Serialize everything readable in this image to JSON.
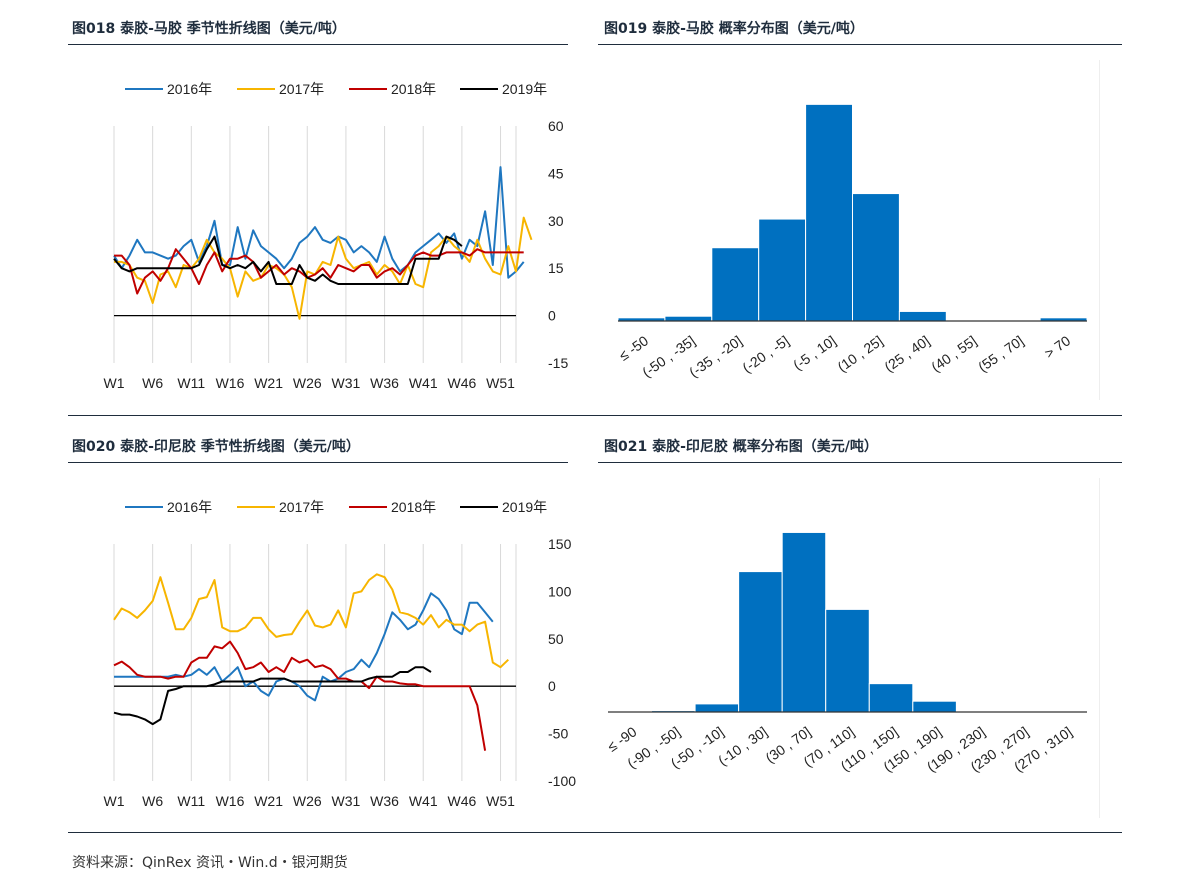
{
  "source": "资料来源：QinRex 资讯・Win.d・银河期货",
  "panels": {
    "p018": {
      "title": "图018  泰胶-马胶  季节性折线图（美元/吨）"
    },
    "p019": {
      "title": "图019  泰胶-马胶  概率分布图（美元/吨）"
    },
    "p020": {
      "title": "图020  泰胶-印尼胶  季节性折线图（美元/吨）"
    },
    "p021": {
      "title": "图021  泰胶-印尼胶  概率分布图（美元/吨）"
    }
  },
  "chart_data": [
    {
      "id": "c018",
      "type": "line",
      "title": "泰胶-马胶 季节性折线图（美元/吨）",
      "legend_position": "top",
      "x_tick_labels": [
        "W1",
        "W6",
        "W11",
        "W16",
        "W21",
        "W26",
        "W31",
        "W36",
        "W41",
        "W46",
        "W51"
      ],
      "y_ticks": [
        60,
        45,
        30,
        15,
        0,
        -15
      ],
      "ylim": [
        -15,
        60
      ],
      "grid": "vertical",
      "series": [
        {
          "name": "2016年",
          "color": "#1f77c0",
          "values": [
            19,
            15,
            19,
            24,
            20,
            20,
            19,
            18,
            19,
            22,
            24,
            17,
            22,
            30,
            16,
            16,
            28,
            18,
            27,
            22,
            20,
            18,
            15,
            18,
            23,
            25,
            28,
            24,
            23,
            25,
            24,
            20,
            22,
            20,
            17,
            25,
            18,
            14,
            16,
            20,
            22,
            24,
            26,
            23,
            26,
            18,
            24,
            22,
            33,
            16,
            47,
            12,
            14,
            17
          ]
        },
        {
          "name": "2017年",
          "color": "#f7b500",
          "values": [
            17,
            17,
            16,
            12,
            11,
            4,
            13,
            14,
            9,
            16,
            15,
            18,
            24,
            20,
            18,
            15,
            6,
            14,
            11,
            12,
            16,
            15,
            13,
            9,
            -1,
            14,
            13,
            17,
            16,
            25,
            18,
            15,
            16,
            17,
            13,
            16,
            14,
            10,
            16,
            10,
            9,
            20,
            22,
            25,
            22,
            20,
            17,
            24,
            18,
            14,
            13,
            22,
            14,
            31,
            24
          ]
        },
        {
          "name": "2018年",
          "color": "#c00000",
          "values": [
            19,
            19,
            16,
            7,
            12,
            14,
            11,
            15,
            21,
            18,
            15,
            10,
            16,
            20,
            14,
            18,
            18,
            19,
            17,
            12,
            14,
            16,
            13,
            15,
            14,
            12,
            13,
            15,
            12,
            16,
            15,
            14,
            16,
            16,
            12,
            14,
            15,
            13,
            16,
            19,
            20,
            19,
            19,
            20,
            20,
            20,
            19,
            21,
            20,
            20,
            20,
            20,
            20,
            20
          ]
        },
        {
          "name": "2019年",
          "color": "#000000",
          "values": [
            18,
            15,
            14,
            15,
            15,
            15,
            15,
            15,
            15,
            15,
            15,
            16,
            21,
            25,
            16,
            15,
            16,
            15,
            17,
            14,
            17,
            10,
            10,
            10,
            16,
            12,
            11,
            13,
            11,
            10,
            10,
            10,
            10,
            10,
            10,
            10,
            10,
            10,
            10,
            18,
            18,
            18,
            18,
            25,
            24,
            22
          ]
        }
      ]
    },
    {
      "id": "c019",
      "type": "bar",
      "title": "泰胶-马胶 概率分布图（美元/吨）",
      "categories": [
        "≤ -50",
        "(-50 , -35]",
        "(-35 , -20]",
        "(-20 , -5]",
        "(-5 , 10]",
        "(10 , 25]",
        "(25 , 40]",
        "(40 , 55]",
        "(55 , 70]",
        "> 70"
      ],
      "values": [
        1,
        1.5,
        23,
        32,
        68,
        40,
        3,
        0,
        0,
        1
      ],
      "ylim": [
        0,
        70
      ],
      "color": "#0070c0"
    },
    {
      "id": "c020",
      "type": "line",
      "title": "泰胶-印尼胶 季节性折线图（美元/吨）",
      "legend_position": "top",
      "x_tick_labels": [
        "W1",
        "W6",
        "W11",
        "W16",
        "W21",
        "W26",
        "W31",
        "W36",
        "W41",
        "W46",
        "W51"
      ],
      "y_ticks": [
        150,
        100,
        50,
        0,
        -50,
        -100
      ],
      "ylim": [
        -100,
        150
      ],
      "grid": "vertical",
      "series": [
        {
          "name": "2016年",
          "color": "#1f77c0",
          "values": [
            10,
            10,
            10,
            10,
            10,
            10,
            10,
            10,
            12,
            10,
            12,
            18,
            12,
            20,
            5,
            12,
            20,
            0,
            5,
            -5,
            -10,
            5,
            8,
            5,
            0,
            -10,
            -15,
            10,
            5,
            8,
            15,
            18,
            28,
            20,
            35,
            55,
            78,
            70,
            60,
            65,
            80,
            98,
            92,
            80,
            60,
            55,
            88,
            88,
            78,
            68
          ]
        },
        {
          "name": "2017年",
          "color": "#f7b500",
          "values": [
            70,
            82,
            78,
            72,
            80,
            90,
            115,
            88,
            60,
            60,
            72,
            92,
            94,
            112,
            62,
            58,
            58,
            62,
            72,
            72,
            60,
            52,
            54,
            55,
            68,
            80,
            64,
            62,
            65,
            80,
            62,
            98,
            100,
            112,
            118,
            115,
            102,
            78,
            76,
            72,
            65,
            75,
            62,
            70,
            65,
            65,
            58,
            65,
            68,
            25,
            20,
            28
          ]
        },
        {
          "name": "2018年",
          "color": "#c00000",
          "values": [
            22,
            26,
            20,
            12,
            10,
            10,
            10,
            8,
            10,
            10,
            25,
            30,
            30,
            42,
            40,
            47,
            35,
            18,
            20,
            25,
            15,
            20,
            15,
            30,
            25,
            28,
            20,
            22,
            18,
            8,
            8,
            5,
            5,
            -2,
            10,
            5,
            5,
            3,
            2,
            2,
            0,
            0,
            0,
            0,
            0,
            0,
            0,
            -20,
            -68
          ]
        },
        {
          "name": "2019年",
          "color": "#000000",
          "values": [
            -28,
            -30,
            -30,
            -32,
            -35,
            -40,
            -35,
            -5,
            -3,
            0,
            0,
            0,
            0,
            2,
            5,
            5,
            5,
            5,
            5,
            8,
            8,
            8,
            8,
            5,
            5,
            5,
            5,
            5,
            5,
            5,
            5,
            5,
            5,
            8,
            10,
            10,
            10,
            15,
            15,
            20,
            20,
            15
          ]
        }
      ]
    },
    {
      "id": "c021",
      "type": "bar",
      "title": "泰胶-印尼胶 概率分布图（美元/吨）",
      "categories": [
        "≤ -90",
        "(-90 , -50]",
        "(-50 , -10]",
        "(-10 , 30]",
        "(30 , 70]",
        "(70 , 110]",
        "(110 , 150]",
        "(150 , 190]",
        "(190 , 230]",
        "(230 , 270]",
        "(270 , 310]"
      ],
      "values": [
        0.3,
        1,
        6,
        104,
        133,
        76,
        21,
        8,
        0,
        0,
        0
      ],
      "ylim": [
        0,
        140
      ],
      "color": "#0070c0"
    }
  ]
}
